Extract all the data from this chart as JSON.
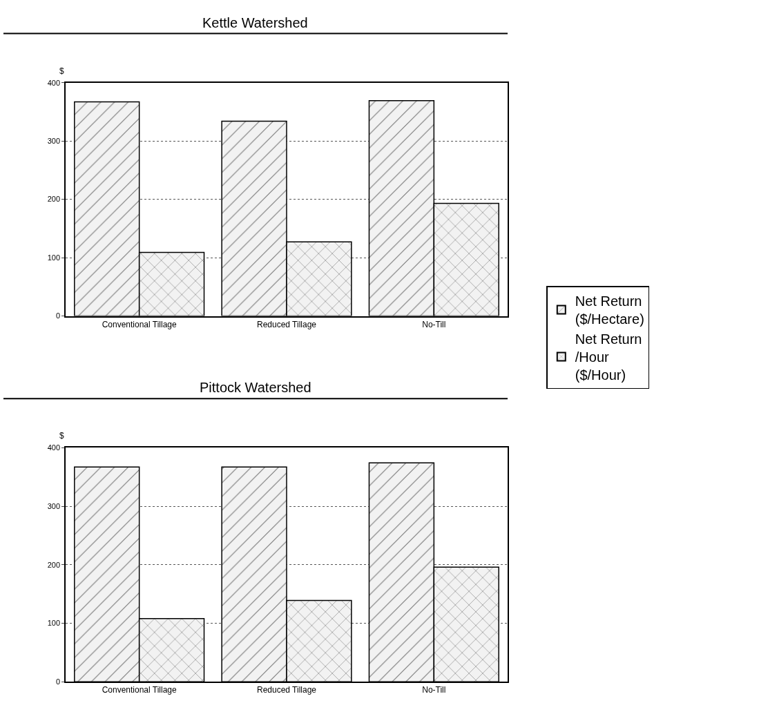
{
  "chart_data": [
    {
      "type": "bar",
      "title": "Kettle Watershed",
      "ylabel": "$",
      "categories": [
        "Conventional Tillage",
        "Reduced Tillage",
        "No-Till"
      ],
      "series": [
        {
          "name": "Net Return ($/Hectare)",
          "color": "#000000",
          "values": [
            367,
            334,
            369
          ]
        },
        {
          "name": "Net Return /Hour ($/Hour)",
          "color": "#000000",
          "values": [
            109,
            127,
            193
          ]
        }
      ],
      "ylim": [
        0,
        400
      ],
      "yticks": [
        0,
        100,
        200,
        300,
        400
      ],
      "grid": "y",
      "legend": "right"
    },
    {
      "type": "bar",
      "title": "Pittock Watershed",
      "ylabel": "$",
      "categories": [
        "Conventional Tillage",
        "Reduced Tillage",
        "No-Till"
      ],
      "series": [
        {
          "color": "#000000",
          "values": [
            367,
            367,
            374
          ]
        },
        {
          "color": "#000000",
          "values": [
            108,
            139,
            196
          ]
        }
      ],
      "ylim": [
        0,
        400
      ],
      "yticks": [
        0,
        100,
        200,
        300,
        400
      ],
      "grid": "y",
      "legend": false
    }
  ]
}
